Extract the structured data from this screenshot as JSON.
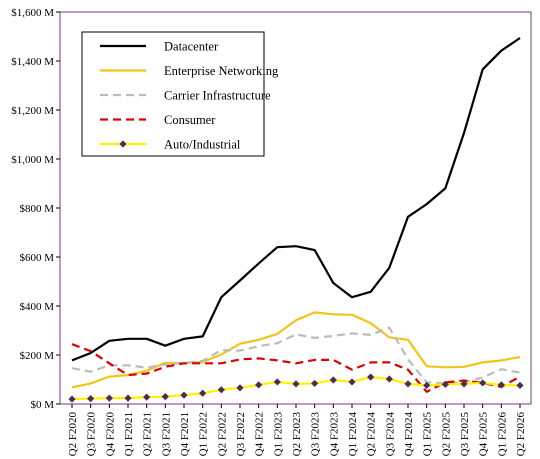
{
  "chart_data": {
    "type": "line",
    "title": "",
    "xlabel": "",
    "ylabel": "",
    "ylim": [
      0,
      1600
    ],
    "y_ticks": [
      {
        "value": 0,
        "label": "$0 M"
      },
      {
        "value": 200,
        "label": "$200 M"
      },
      {
        "value": 400,
        "label": "$400 M"
      },
      {
        "value": 600,
        "label": "$600 M"
      },
      {
        "value": 800,
        "label": "$800 M"
      },
      {
        "value": 1000,
        "label": "$1,000 M"
      },
      {
        "value": 1200,
        "label": "$1,200 M"
      },
      {
        "value": 1400,
        "label": "$1,400 M"
      },
      {
        "value": 1600,
        "label": "$1,600 M"
      }
    ],
    "grid": false,
    "legend_position": "top-left",
    "categories": [
      "Q2 F2020",
      "Q3 F2020",
      "Q4 F2020",
      "Q1 F2021",
      "Q2 F2021",
      "Q3 F2021",
      "Q4 F2021",
      "Q1 F2022",
      "Q2 F2022",
      "Q3 F2022",
      "Q4 F2022",
      "Q1 F2023",
      "Q2 F2023",
      "Q3 F2023",
      "Q4 F2023",
      "Q1 F2024",
      "Q2 F2024",
      "Q3 F2024",
      "Q4 F2024",
      "Q1 F2025",
      "Q2 F2025",
      "Q3 F2025",
      "Q4 F2025",
      "Q1 F2026",
      "Q2 F2026"
    ],
    "series": [
      {
        "name": "Datacenter",
        "color": "#000000",
        "style": "solid",
        "marker": "none",
        "values": [
          178,
          208,
          258,
          266,
          266,
          238,
          266,
          276,
          436,
          504,
          574,
          640,
          644,
          628,
          494,
          436,
          458,
          556,
          764,
          816,
          880,
          1106,
          1366,
          1442,
          1494
        ]
      },
      {
        "name": "Enterprise Networking",
        "color": "#f0c419",
        "style": "solid",
        "marker": "none",
        "values": [
          68,
          84,
          112,
          118,
          136,
          168,
          166,
          172,
          202,
          246,
          262,
          286,
          342,
          374,
          366,
          364,
          330,
          272,
          262,
          154,
          150,
          152,
          170,
          178,
          192
        ]
      },
      {
        "name": "Carrier Infrastructure",
        "color": "#bbbbbb",
        "style": "dashed",
        "marker": "none",
        "values": [
          146,
          132,
          158,
          158,
          148,
          162,
          168,
          176,
          220,
          218,
          236,
          248,
          284,
          270,
          278,
          288,
          282,
          312,
          182,
          88,
          84,
          88,
          108,
          142,
          128
        ]
      },
      {
        "name": "Consumer",
        "color": "#dd0000",
        "style": "dashed",
        "marker": "none",
        "values": [
          244,
          216,
          166,
          118,
          124,
          152,
          166,
          166,
          166,
          182,
          186,
          178,
          166,
          180,
          180,
          140,
          170,
          170,
          140,
          50,
          88,
          96,
          86,
          70,
          112
        ]
      },
      {
        "name": "Auto/Industrial",
        "color": "#fff200",
        "style": "solid",
        "marker": "diamond",
        "marker_color": "#4b2d50",
        "values": [
          20,
          22,
          24,
          24,
          28,
          30,
          36,
          44,
          58,
          66,
          78,
          90,
          82,
          84,
          98,
          90,
          110,
          102,
          82,
          76,
          80,
          82,
          86,
          78,
          76
        ]
      }
    ]
  }
}
